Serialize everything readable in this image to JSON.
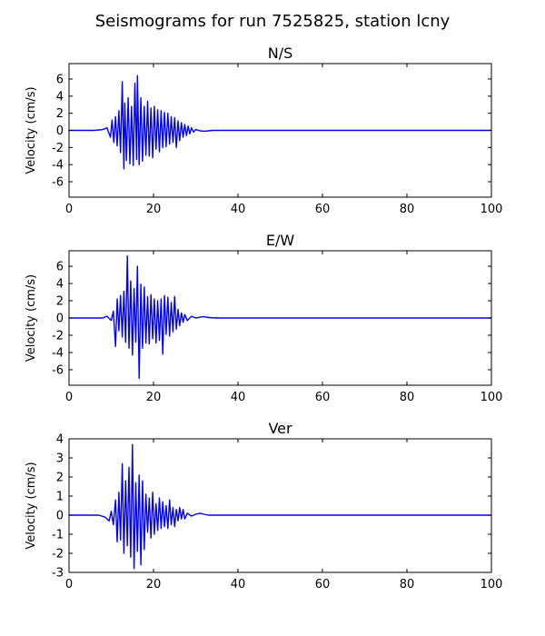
{
  "figure": {
    "title": "Seismograms for run 7525825, station lcny"
  },
  "chart_data": [
    {
      "type": "line",
      "title": "N/S",
      "xlabel": "",
      "ylabel": "Velocity (cm/s)",
      "xlim": [
        0,
        100
      ],
      "ylim": [
        -7.8,
        7.8
      ],
      "xticks": [
        0,
        20,
        40,
        60,
        80,
        100
      ],
      "yticks": [
        -6,
        -4,
        -2,
        0,
        2,
        4,
        6
      ],
      "grid": false,
      "color": "#0000ff",
      "x": [
        0,
        6,
        8,
        9,
        9.8,
        10.2,
        10.6,
        11,
        11.4,
        11.8,
        12.2,
        12.6,
        13,
        13.2,
        13.6,
        14,
        14.4,
        14.8,
        15.2,
        15.6,
        16,
        16.2,
        16.6,
        17,
        17.4,
        17.8,
        18.2,
        18.6,
        19,
        19.4,
        19.8,
        20.2,
        20.6,
        21,
        21.4,
        21.8,
        22.2,
        22.6,
        23,
        23.4,
        23.8,
        24.2,
        24.6,
        25,
        25.4,
        25.8,
        26.2,
        26.6,
        27,
        27.4,
        27.8,
        28.2,
        28.6,
        29,
        29.5,
        30,
        31,
        32,
        33,
        34,
        36,
        40,
        100
      ],
      "y": [
        0,
        0,
        0.1,
        0.3,
        -0.8,
        1.2,
        -1.4,
        1.6,
        -1.8,
        2.3,
        -2.6,
        5.7,
        -4.5,
        3.2,
        -3.5,
        3.8,
        -3.9,
        2.8,
        -4.1,
        5.5,
        -3.4,
        6.4,
        -4.0,
        3.8,
        -3.6,
        2.8,
        -2.9,
        3.4,
        -3.0,
        2.6,
        -3.2,
        2.8,
        -2.2,
        2.4,
        -2.5,
        2.3,
        -2.0,
        2.1,
        -1.9,
        2.0,
        -1.6,
        1.6,
        -1.4,
        1.5,
        -2.0,
        1.1,
        -1.2,
        0.9,
        -0.8,
        0.7,
        -0.6,
        0.5,
        -0.4,
        0.3,
        -0.2,
        0.1,
        -0.05,
        -0.1,
        -0.05,
        0,
        0,
        0,
        0
      ]
    },
    {
      "type": "line",
      "title": "E/W",
      "xlabel": "",
      "ylabel": "Velocity (cm/s)",
      "xlim": [
        0,
        100
      ],
      "ylim": [
        -7.8,
        7.8
      ],
      "xticks": [
        0,
        20,
        40,
        60,
        80,
        100
      ],
      "yticks": [
        -6,
        -4,
        -2,
        0,
        2,
        4,
        6
      ],
      "grid": false,
      "color": "#0000ff",
      "x": [
        0,
        8,
        9,
        10,
        10.5,
        11,
        11.4,
        11.8,
        12.2,
        12.6,
        13,
        13.4,
        13.8,
        14.2,
        14.6,
        15,
        15.4,
        15.8,
        16.2,
        16.6,
        17,
        17.4,
        17.8,
        18.2,
        18.6,
        19,
        19.4,
        19.8,
        20.2,
        20.6,
        21,
        21.4,
        21.8,
        22.2,
        22.6,
        23,
        23.4,
        23.8,
        24.2,
        24.6,
        25,
        25.4,
        25.8,
        26.2,
        26.6,
        27,
        27.4,
        28,
        29,
        30,
        31,
        32,
        33,
        35,
        40,
        100
      ],
      "y": [
        0,
        0,
        0.2,
        -0.3,
        0.8,
        -3.3,
        2.2,
        -1.5,
        2.6,
        -2.2,
        3.1,
        -2.8,
        7.2,
        -3.5,
        4.3,
        -4.3,
        3.4,
        -2.8,
        6.0,
        -7.0,
        3.9,
        -3.5,
        3.6,
        -2.9,
        2.5,
        -3.0,
        2.7,
        -2.4,
        2.2,
        -2.9,
        2.0,
        -2.6,
        2.2,
        -4.2,
        2.6,
        -1.9,
        2.4,
        -2.1,
        1.8,
        -1.6,
        2.5,
        -1.3,
        1.0,
        -0.9,
        0.6,
        -0.5,
        0.4,
        -0.3,
        0.2,
        0.0,
        0.1,
        0.15,
        0.05,
        0,
        0,
        0
      ]
    },
    {
      "type": "line",
      "title": "Ver",
      "xlabel": "",
      "ylabel": "Velocity (cm/s)",
      "xlim": [
        0,
        100
      ],
      "ylim": [
        -3,
        4
      ],
      "xticks": [
        0,
        20,
        40,
        60,
        80,
        100
      ],
      "yticks": [
        -3,
        -2,
        -1,
        0,
        1,
        2,
        3,
        4
      ],
      "grid": false,
      "color": "#0000ff",
      "x": [
        0,
        7,
        8.5,
        9.5,
        10,
        10.5,
        11,
        11.4,
        11.8,
        12.2,
        12.6,
        13,
        13.4,
        13.8,
        14.2,
        14.6,
        15,
        15.4,
        15.8,
        16.2,
        16.6,
        17,
        17.4,
        17.8,
        18.2,
        18.6,
        19,
        19.4,
        19.8,
        20.2,
        20.6,
        21,
        21.4,
        21.8,
        22.2,
        22.6,
        23,
        23.4,
        23.8,
        24.2,
        24.6,
        25,
        25.4,
        25.8,
        26.2,
        26.6,
        27,
        27.4,
        28,
        29,
        30,
        31,
        32,
        33,
        35,
        40,
        100
      ],
      "y": [
        0,
        0,
        -0.1,
        -0.3,
        0.2,
        -0.5,
        0.8,
        -1.4,
        1.2,
        -1.3,
        2.7,
        -2.0,
        1.8,
        -1.6,
        2.5,
        -2.2,
        3.7,
        -2.8,
        1.7,
        -1.9,
        2.1,
        -2.6,
        1.8,
        -1.8,
        1.1,
        -0.9,
        0.9,
        -1.2,
        1.2,
        -1.0,
        0.6,
        -0.8,
        0.9,
        -0.7,
        0.7,
        -0.6,
        0.5,
        -0.7,
        0.8,
        -0.5,
        0.4,
        -0.6,
        0.3,
        -0.3,
        0.4,
        -0.2,
        0.3,
        -0.2,
        0.1,
        -0.05,
        0.05,
        0.1,
        0.05,
        0,
        0,
        0,
        0
      ]
    }
  ]
}
